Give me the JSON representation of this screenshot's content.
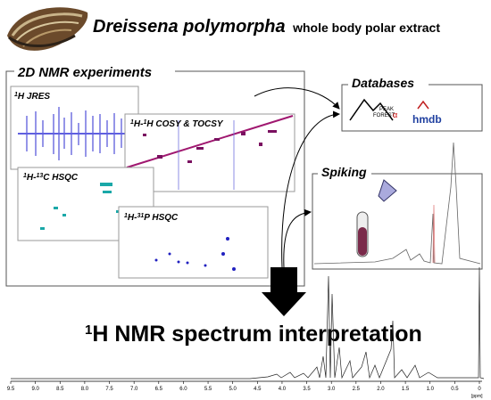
{
  "header": {
    "species": "Dreissena polymorpha",
    "subtitle": "whole body polar extract"
  },
  "nmr_2d": {
    "title": "2D NMR experiments",
    "panels": [
      {
        "parts": [
          "1",
          "H JRES"
        ]
      },
      {
        "parts": [
          "1",
          "H-",
          "1",
          "H  COSY & TOCSY"
        ]
      },
      {
        "parts": [
          "1",
          "H-",
          "13",
          "C HSQC"
        ]
      },
      {
        "parts": [
          "1",
          "H-",
          "31",
          "P HSQC"
        ]
      }
    ]
  },
  "databases": {
    "title": "Databases",
    "peakforest": [
      "PEAK",
      "FOREST",
      "α"
    ],
    "hmdb": "hmdb"
  },
  "spiking": {
    "title": "Spiking"
  },
  "result": {
    "parts": [
      "1",
      "H NMR spectrum interpretation"
    ]
  },
  "axis": {
    "ticks": [
      {
        "value": 9.5,
        "label": "9.5"
      },
      {
        "value": 9,
        "label": "9.0"
      },
      {
        "value": 8.5,
        "label": "8.5"
      },
      {
        "value": 8,
        "label": "8.0"
      },
      {
        "value": 7.5,
        "label": "7.5"
      },
      {
        "value": 7,
        "label": "7.0"
      },
      {
        "value": 6.5,
        "label": "6.5"
      },
      {
        "value": 6,
        "label": "6.0"
      },
      {
        "value": 5.5,
        "label": "5.5"
      },
      {
        "value": 5,
        "label": "5.0"
      },
      {
        "value": 4.5,
        "label": "4.5"
      },
      {
        "value": 4,
        "label": "4.0"
      },
      {
        "value": 3.5,
        "label": "3.5"
      },
      {
        "value": 3,
        "label": "3.0"
      },
      {
        "value": 2.5,
        "label": "2.5"
      },
      {
        "value": 2,
        "label": "2.0"
      },
      {
        "value": 1.5,
        "label": "1.5"
      },
      {
        "value": 1,
        "label": "1.0"
      },
      {
        "value": 0.5,
        "label": "0.5"
      },
      0
    ],
    "unit": "[ppm]"
  }
}
